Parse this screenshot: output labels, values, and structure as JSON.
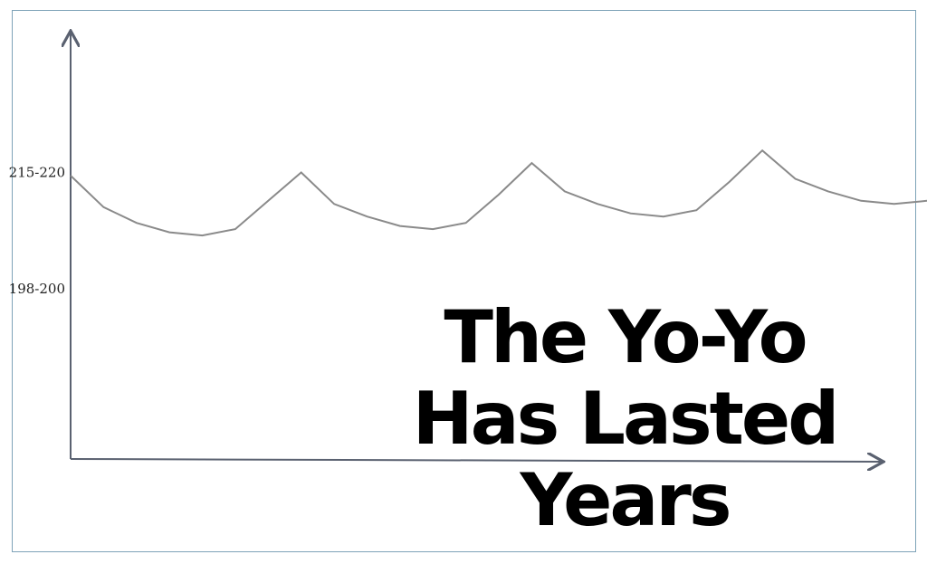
{
  "chart_data": {
    "type": "line",
    "title": "",
    "xlabel": "",
    "ylabel": "",
    "y_tick_labels": [
      "215-220",
      "198-200"
    ],
    "y_tick_values": [
      217.5,
      199
    ],
    "ylim": [
      172,
      240
    ],
    "grid": false,
    "series": [
      {
        "values": [
          217,
          212,
          209.5,
          208,
          207.5,
          208.5,
          213,
          217.5,
          212.5,
          210.5,
          209,
          208.5,
          209.5,
          214,
          219,
          214.5,
          212.5,
          211,
          210.5,
          211.5,
          216,
          221,
          216.5,
          214.5,
          213,
          212.5,
          213
        ]
      }
    ],
    "colors": {
      "line": "#8a8a8a",
      "axis": "#5a6170",
      "frame": "#7ea3b8"
    }
  },
  "headline": {
    "line1": "The Yo-Yo",
    "line2": "Has Lasted",
    "line3": "Years"
  }
}
